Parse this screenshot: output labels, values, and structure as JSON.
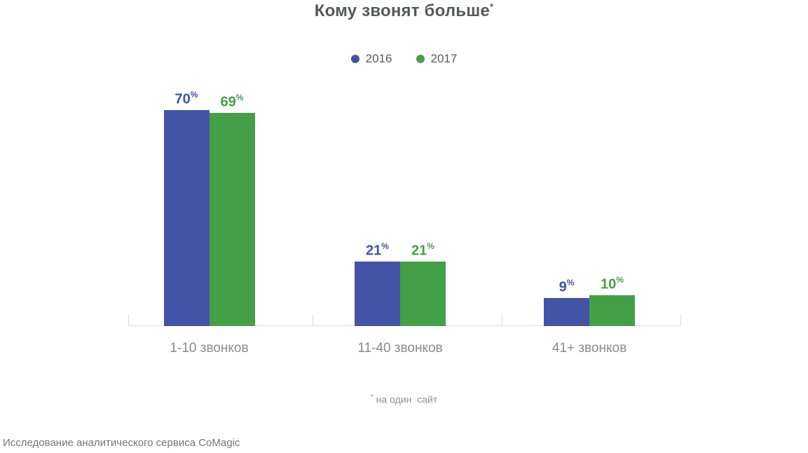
{
  "header": {
    "text": "Кому звонят больше",
    "marker": "*"
  },
  "chart_data": {
    "type": "bar",
    "title": "Кому звонят больше*",
    "categories": [
      "1-10 звонков",
      "11-40 звонков",
      "41+ звонков"
    ],
    "series": [
      {
        "name": "2016",
        "color": "#4353a5",
        "values": [
          70,
          21,
          9
        ]
      },
      {
        "name": "2017",
        "color": "#43a047",
        "values": [
          69,
          21,
          10
        ]
      }
    ],
    "value_suffix": "%",
    "ylim": [
      0,
      75
    ],
    "grid": false,
    "legend_position": "top-center",
    "footnote": "* на один  сайт",
    "source": "Исследование аналитического сервиса CoMagic"
  },
  "footnote": {
    "marker": "*",
    "text": " на один  сайт"
  },
  "source": "Исследование аналитического сервиса CoMagic",
  "colors": {
    "bar_2016": "#4353a5",
    "bar_2017": "#43a047",
    "axis": "#d8dce1",
    "title_text": "#57585c",
    "category_text": "#8a8a8a"
  }
}
